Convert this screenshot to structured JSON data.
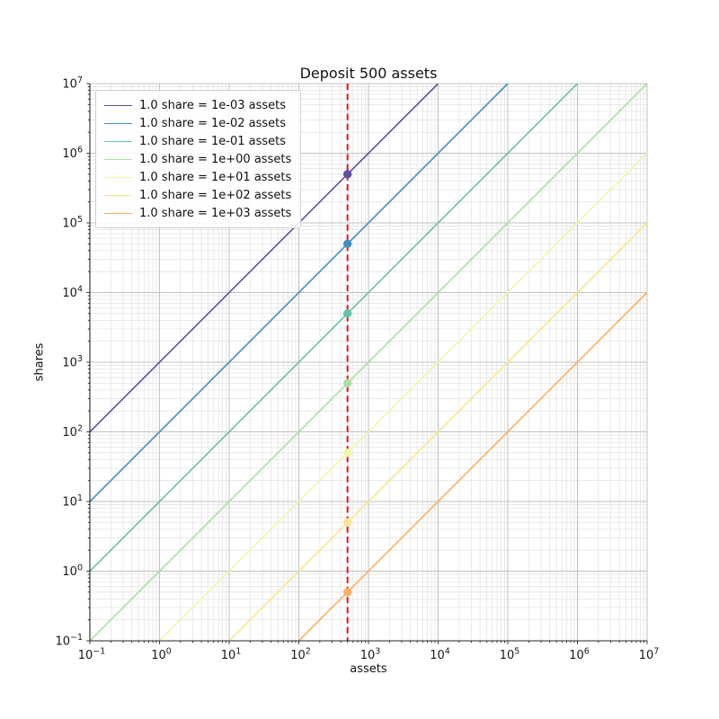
{
  "figure": {
    "background": "#ffffff"
  },
  "chart_data": {
    "type": "line",
    "title": "Deposit 500 assets",
    "xlabel": "assets",
    "ylabel": "shares",
    "xscale": "log",
    "yscale": "log",
    "xlim": [
      0.1,
      10000000
    ],
    "ylim": [
      0.1,
      10000000
    ],
    "x_tick_exponents": [
      -1,
      0,
      1,
      2,
      3,
      4,
      5,
      6,
      7
    ],
    "y_tick_exponents": [
      -1,
      0,
      1,
      2,
      3,
      4,
      5,
      6,
      7
    ],
    "grid": {
      "which": "both",
      "major_color": "#c0c0c0",
      "minor_color": "#e4e4e4"
    },
    "legend_position": "upper-left",
    "series": [
      {
        "label": "1.0 share = 1e-03 assets",
        "color": "#5e4fa2",
        "assets_per_share": 0.001,
        "point": {
          "x": 500,
          "y": 500000
        }
      },
      {
        "label": "1.0 share = 1e-02 assets",
        "color": "#3f8fbf",
        "assets_per_share": 0.01,
        "point": {
          "x": 500,
          "y": 50000
        }
      },
      {
        "label": "1.0 share = 1e-01 assets",
        "color": "#66c2a5",
        "assets_per_share": 0.1,
        "point": {
          "x": 500,
          "y": 5000
        }
      },
      {
        "label": "1.0 share = 1e+00 assets",
        "color": "#abdda4",
        "assets_per_share": 1,
        "point": {
          "x": 500,
          "y": 500
        }
      },
      {
        "label": "1.0 share = 1e+01 assets",
        "color": "#eff8a6",
        "assets_per_share": 10,
        "point": {
          "x": 500,
          "y": 50
        }
      },
      {
        "label": "1.0 share = 1e+02 assets",
        "color": "#fee491",
        "assets_per_share": 100,
        "point": {
          "x": 500,
          "y": 5
        }
      },
      {
        "label": "1.0 share = 1e+03 assets",
        "color": "#fdae61",
        "assets_per_share": 1000,
        "point": {
          "x": 500,
          "y": 0.5
        }
      }
    ],
    "vline": {
      "x": 500,
      "color": "#ee1111",
      "style": "dashed"
    },
    "axis_color": "#262626",
    "marker": "circle"
  }
}
